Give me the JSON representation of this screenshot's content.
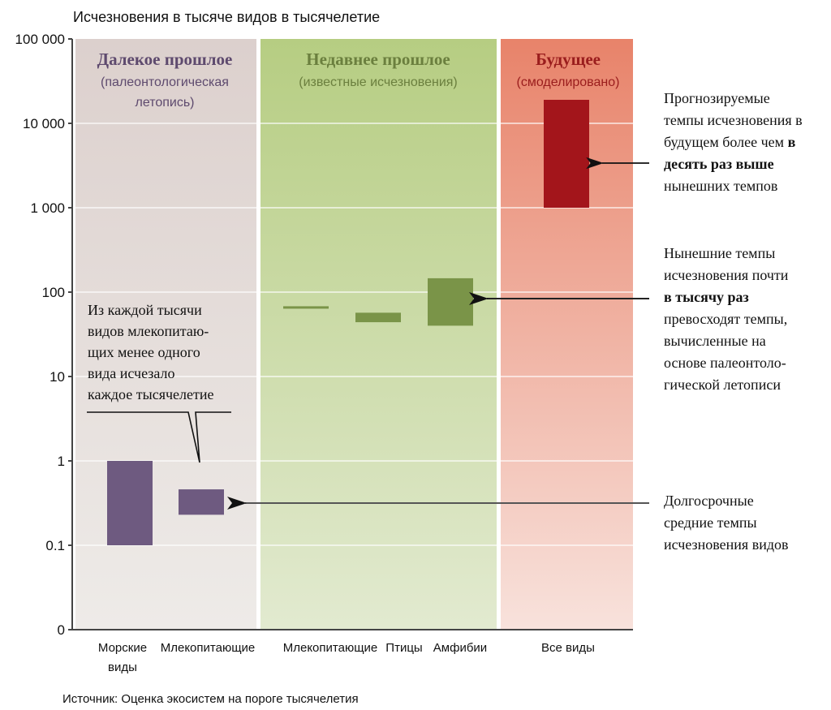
{
  "chart_data": {
    "type": "bar",
    "title": "Исчезновения в тысяче видов в тысячелетие",
    "yscale": "log",
    "ylim": [
      0,
      100000
    ],
    "y_ticks": [
      "100 000",
      "10 000",
      "1 000",
      "100",
      "10",
      "1",
      "0.1",
      "0"
    ],
    "y_tick_values": [
      100000,
      10000,
      1000,
      100,
      10,
      1,
      0.1,
      0
    ],
    "grid": true,
    "panels": [
      {
        "title": "Далекое прошлое",
        "subtitle_lines": [
          "(палеонтологическая",
          "летопись)"
        ],
        "color": "#5e4a6e"
      },
      {
        "title": "Недавнее прошлое",
        "subtitle_lines": [
          "(известные исчезновения)"
        ],
        "color": "#6b7f3e"
      },
      {
        "title": "Будущее",
        "subtitle_lines": [
          "(смоделировано)"
        ],
        "color": "#9a1d1d"
      }
    ],
    "categories": [
      {
        "label_lines": [
          "Морские",
          "виды"
        ],
        "panel": 0,
        "low": 0.1,
        "high": 1,
        "color": "#6e5a80"
      },
      {
        "label_lines": [
          "Млекопитающие"
        ],
        "panel": 0,
        "low": 0.23,
        "high": 0.46,
        "color": "#6e5a80"
      },
      {
        "label_lines": [
          "Млекопитающие"
        ],
        "panel": 1,
        "low": 64,
        "high": 68,
        "color": "#7a9448"
      },
      {
        "label_lines": [
          "Птицы"
        ],
        "panel": 1,
        "low": 44,
        "high": 57,
        "color": "#7a9448"
      },
      {
        "label_lines": [
          "Амфибии"
        ],
        "panel": 1,
        "low": 40,
        "high": 146,
        "color": "#7a9448"
      },
      {
        "label_lines": [
          "Все виды"
        ],
        "panel": 2,
        "low": 1000,
        "high": 19000,
        "color": "#a3151b"
      }
    ],
    "annotations": {
      "future": [
        [
          {
            "t": "Прогнозируемые",
            "b": false
          }
        ],
        [
          {
            "t": "темпы исчезновения в",
            "b": false
          }
        ],
        [
          {
            "t": "будущем более чем ",
            "b": false
          },
          {
            "t": "в",
            "b": true
          }
        ],
        [
          {
            "t": "десять раз выше",
            "b": true
          }
        ],
        [
          {
            "t": "нынешних темпов",
            "b": false
          }
        ]
      ],
      "current": [
        [
          {
            "t": "Нынешние темпы",
            "b": false
          }
        ],
        [
          {
            "t": "исчезновения почти",
            "b": false
          }
        ],
        [
          {
            "t": "в тысячу раз",
            "b": true
          }
        ],
        [
          {
            "t": "превосходят темпы,",
            "b": false
          }
        ],
        [
          {
            "t": "вычисленные на",
            "b": false
          }
        ],
        [
          {
            "t": "основе палеонтоло-",
            "b": false
          }
        ],
        [
          {
            "t": "гической летописи",
            "b": false
          }
        ]
      ],
      "longterm": [
        [
          {
            "t": "Долгосрочные",
            "b": false
          }
        ],
        [
          {
            "t": "средние темпы",
            "b": false
          }
        ],
        [
          {
            "t": "исчезновения видов",
            "b": false
          }
        ]
      ],
      "mammals": [
        [
          {
            "t": "Из каждой тысячи",
            "b": false
          }
        ],
        [
          {
            "t": "видов млекопитаю-",
            "b": false
          }
        ],
        [
          {
            "t": "щих менее одного",
            "b": false
          }
        ],
        [
          {
            "t": "вида исчезало",
            "b": false
          }
        ],
        [
          {
            "t": "каждое тысячелетие",
            "b": false
          }
        ]
      ]
    },
    "source": "Источник: Оценка экосистем на пороге тысячелетия"
  }
}
